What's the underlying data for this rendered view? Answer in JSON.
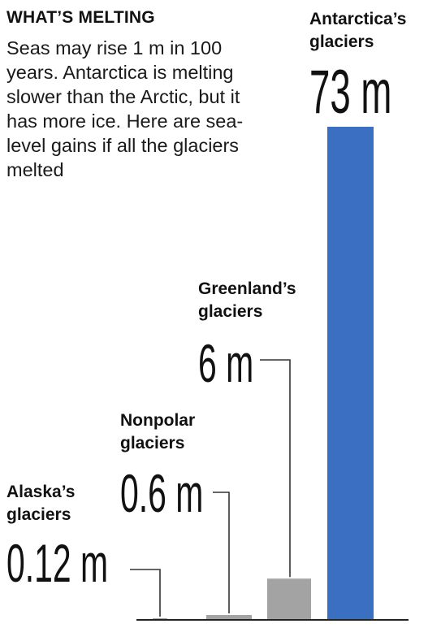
{
  "colors": {
    "antarctica_bar": "#3a6fc2",
    "other_bars": "#a3a3a3",
    "baseline": "#222222",
    "leader": "#333333"
  },
  "chart_data": {
    "type": "bar",
    "title": "WHAT’S MELTING",
    "subtitle": "Seas may rise 1 m in 100 years. Antarctica is melting slower than the Arctic, but it has more ice. Here are sea-level gains if all the glaciers melted",
    "unit": "m",
    "categories": [
      "Alaska’s glaciers",
      "Nonpolar glaciers",
      "Greenland’s glaciers",
      "Antarctica’s glaciers"
    ],
    "values": [
      0.12,
      0.6,
      6,
      73
    ],
    "value_labels": [
      "0.12 m",
      "0.6 m",
      "6 m",
      "73 m"
    ],
    "category_lines": [
      [
        "Alaska’s",
        "glaciers"
      ],
      [
        "Nonpolar",
        "glaciers"
      ],
      [
        "Greenland’s",
        "glaciers"
      ],
      [
        "Antarctica’s",
        "glaciers"
      ]
    ],
    "ylim": [
      0,
      73
    ],
    "grid": false,
    "legend": "none"
  }
}
